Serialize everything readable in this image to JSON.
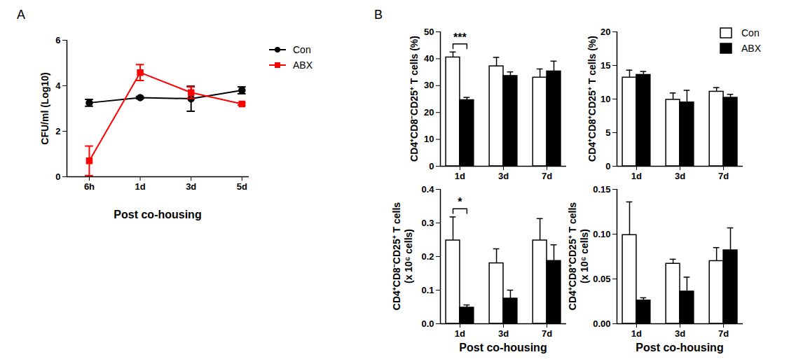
{
  "chart_data": [
    {
      "type": "line",
      "title": "A",
      "categories": [
        "6h",
        "1d",
        "3d",
        "5d"
      ],
      "x_label": "Post co-housing",
      "y_label": "CFU/ml (Log10)",
      "ylim": [
        0,
        6
      ],
      "yticks": [
        0,
        2,
        4,
        6
      ],
      "legend": "top-right",
      "series": [
        {
          "name": "Con",
          "color": "#000000",
          "marker": "circle",
          "values": [
            3.25,
            3.48,
            3.43,
            3.8
          ],
          "errors": [
            0.15,
            0.05,
            0.55,
            0.15
          ]
        },
        {
          "name": "ABX",
          "color": "#ff0000",
          "marker": "square",
          "values": [
            0.7,
            4.58,
            3.7,
            3.2
          ],
          "errors": [
            0.65,
            0.35,
            0.25,
            0.05
          ]
        }
      ]
    },
    {
      "type": "bar",
      "title": "B",
      "categories": [
        "1d",
        "3d",
        "7d"
      ],
      "y_label": "CD4⁺CD8⁻CD25⁺ T cells (%)",
      "ylim": [
        0,
        50
      ],
      "yticks": [
        0,
        10,
        20,
        30,
        40,
        50
      ],
      "series": [
        {
          "name": "Con",
          "color": "#ffffff",
          "values": [
            40.5,
            37.2,
            33.0
          ],
          "errors": [
            2.0,
            3.3,
            3.2
          ]
        },
        {
          "name": "ABX",
          "color": "#000000",
          "values": [
            24.6,
            33.6,
            35.3
          ],
          "errors": [
            1.0,
            1.5,
            3.8
          ]
        }
      ],
      "annotations": [
        {
          "text": "***",
          "x": "1d"
        }
      ]
    },
    {
      "type": "bar",
      "categories": [
        "1d",
        "3d",
        "7d"
      ],
      "y_label": "CD4⁺CD8⁺CD25⁺ T cells (%)",
      "ylim": [
        0,
        20
      ],
      "yticks": [
        0,
        5,
        10,
        15,
        20
      ],
      "legend": "top-right",
      "series": [
        {
          "name": "Con",
          "color": "#ffffff",
          "values": [
            13.2,
            9.9,
            11.1
          ],
          "errors": [
            1.1,
            1.0,
            0.6
          ]
        },
        {
          "name": "ABX",
          "color": "#000000",
          "values": [
            13.6,
            9.5,
            10.2
          ],
          "errors": [
            0.5,
            1.8,
            0.5
          ]
        }
      ]
    },
    {
      "type": "bar",
      "categories": [
        "1d",
        "3d",
        "7d"
      ],
      "x_label": "Post co-housing",
      "y_label": "CD4⁺CD8⁻CD25⁺ T cells\n(x 10⁶ cells)",
      "ylim": [
        0,
        0.4
      ],
      "yticks": [
        {
          "value": 0,
          "label": "0.0"
        },
        0.1,
        0.2,
        0.3,
        0.4
      ],
      "series": [
        {
          "name": "Con",
          "color": "#ffffff",
          "values": [
            0.248,
            0.18,
            0.248
          ],
          "errors": [
            0.07,
            0.043,
            0.065
          ]
        },
        {
          "name": "ABX",
          "color": "#000000",
          "values": [
            0.048,
            0.075,
            0.187
          ],
          "errors": [
            0.008,
            0.025,
            0.048
          ]
        }
      ],
      "annotations": [
        {
          "text": "*",
          "x": "1d"
        }
      ]
    },
    {
      "type": "bar",
      "categories": [
        "1d",
        "3d",
        "7d"
      ],
      "x_label": "Post co-housing",
      "y_label": "CD4⁺CD8⁺CD25⁺ T cells\n(x 10⁶ cells)",
      "ylim": [
        0,
        0.15
      ],
      "yticks": [
        {
          "value": 0,
          "label": "0.00"
        },
        0.05,
        {
          "value": 0.1,
          "label": "0.10"
        },
        0.15
      ],
      "series": [
        {
          "name": "Con",
          "color": "#ffffff",
          "values": [
            0.099,
            0.067,
            0.07
          ],
          "errors": [
            0.037,
            0.005,
            0.015
          ]
        },
        {
          "name": "ABX",
          "color": "#000000",
          "values": [
            0.026,
            0.036,
            0.082
          ],
          "errors": [
            0.003,
            0.016,
            0.025
          ]
        }
      ]
    }
  ]
}
